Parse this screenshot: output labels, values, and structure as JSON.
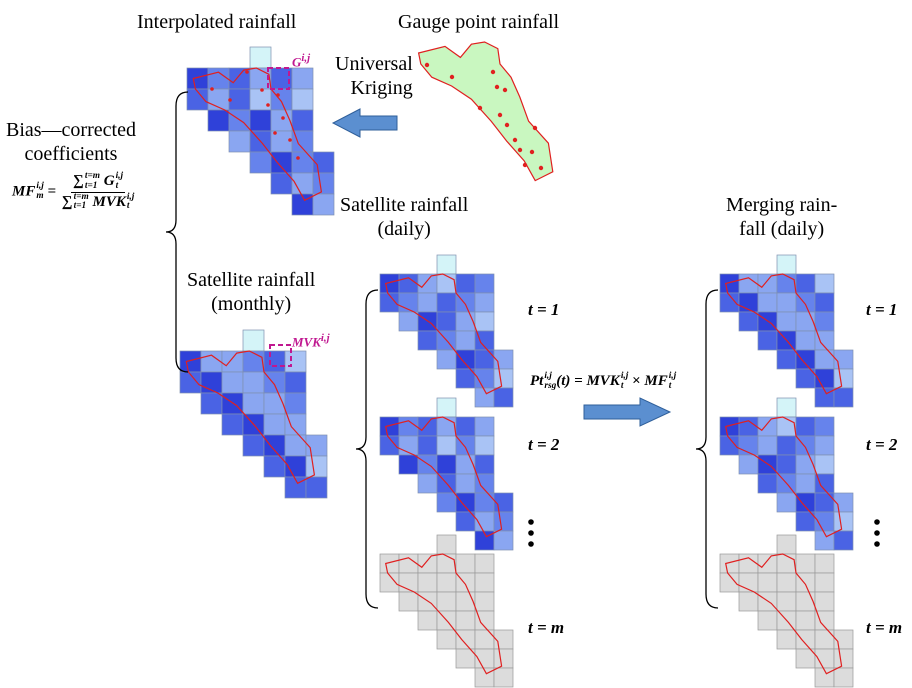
{
  "titles": {
    "interpolated": "Interpolated rainfall",
    "gauge": "Gauge point rainfall",
    "kriging": [
      "Universal",
      "Kriging"
    ],
    "bias": [
      "Bias—corrected",
      "coefficients"
    ],
    "sat_daily": [
      "Satellite rainfall",
      "(daily)"
    ],
    "sat_monthly": [
      "Satellite rainfall",
      "(monthly)"
    ],
    "merging": [
      "Merging rain-",
      "fall (daily)"
    ]
  },
  "grid_labels": {
    "g": {
      "base": "G",
      "sup": "i,j"
    },
    "mvk": {
      "base": "MVK",
      "sup": "i,j"
    }
  },
  "time_labels": [
    "t = 1",
    "t = 2",
    "t = m"
  ],
  "formulas": {
    "mf": {
      "lhs": "MF",
      "lhs_sup": "i,j",
      "lhs_sub": "m",
      "eq": "=",
      "num": {
        "sum": "∑",
        "sum_sup": "t=m",
        "sum_sub": "t=1",
        "term": "G",
        "term_sup": "i,j",
        "term_sub": "t"
      },
      "den": {
        "sum": "∑",
        "sum_sup": "t=m",
        "sum_sub": "t=1",
        "term": "MVK",
        "term_sup": "i,j",
        "term_sub": "t"
      }
    },
    "pt": {
      "lhs": "Pt",
      "lhs_sup": "i,j",
      "lhs_sub": "rsg",
      "arg": "(t) =",
      "a": "MVK",
      "a_sup": "i,j",
      "a_sub": "t",
      "times": "×",
      "b": "MF",
      "b_sup": "i,j",
      "b_sub": "t"
    }
  }
}
